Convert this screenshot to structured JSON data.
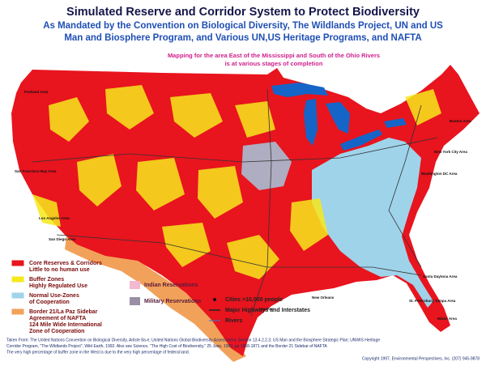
{
  "header": {
    "title": "Simulated Reserve and Corridor System to Protect Biodiversity",
    "subtitle_lines": [
      "As Mandated by the Convention on Biological Diversity, The Wildlands Project, UN and US",
      "Man and Biosphere Program, and Various UN,US Heritage Programs, and NAFTA"
    ],
    "note_lines": [
      "Mapping for the area East of the Mississippi and South of the Ohio Rivers",
      "is at various stages of completion"
    ]
  },
  "legend": {
    "zones": [
      {
        "lines": [
          "Core Reserves & Corridors",
          "Little to no human use"
        ],
        "color": "#e8141e"
      },
      {
        "lines": [
          "Buffer Zones",
          "Highly Regulated Use"
        ],
        "color": "#f7e81c"
      },
      {
        "lines": [
          "Normal Use-Zones",
          "of Cooperation"
        ],
        "color": "#9fd3ea"
      },
      {
        "lines": [
          "Border 21/La Paz Sidebar",
          "Agreement of NAFTA",
          "124 Mile Wide International",
          "Zone of Cooperation"
        ],
        "color": "#f2a15a"
      }
    ],
    "reservations": [
      {
        "label": "Indian Reservations",
        "color": "#f3b9d2"
      },
      {
        "label": "Military Reservations",
        "color": "#9a8fa6"
      }
    ],
    "features": [
      "Cities >10,000 people",
      "Major Highways and Interstates",
      "Rivers"
    ]
  },
  "city_labels": [
    "Portland Area",
    "San Francisco Bay Area",
    "Los Angeles Area",
    "San Diego Area",
    "New Orleans",
    "Houston",
    "Boston Area",
    "New York City Area",
    "Washington DC Area",
    "St. Petersburg Tampa Area",
    "Santa Daytona Area",
    "Miami Area"
  ],
  "footer": {
    "lines": [
      "Taken From: The United Nations Convention on Biological Diversity, Article 8a-e; United Nations Global Biodiversity Assessment, Section 13.4.2.2.3; US Man and the Biosphere Strategic Plan; UNWIS Heritage",
      "Corridor Program, \"The Wildlands Project\", Wild Earth, 1992. Also see Science, \"The High Cost of Biodiversity,\" 25 June, 1993, pp 1868-1871 and the Border 21 Sidebar of NAFTA",
      "The very high percentage of buffer zone in the West is due to the very high percentage of federal land."
    ],
    "copyright": "Copyright 1997, Environmental Perspectives, Inc. (207) 945-9878"
  }
}
